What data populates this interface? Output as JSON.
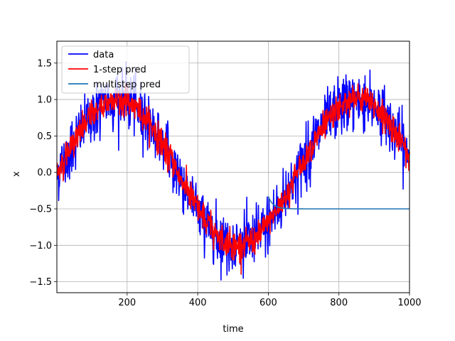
{
  "chart_data": {
    "type": "line",
    "title": "",
    "xlabel": "time",
    "ylabel": "x",
    "xlim": [
      1,
      1000
    ],
    "ylim": [
      -1.65,
      1.8
    ],
    "grid": true,
    "legend_position": "top-left",
    "x_ticks": [
      "200",
      "400",
      "600",
      "800",
      "1000"
    ],
    "y_ticks": [
      "−1.5",
      "−1.0",
      "−0.5",
      "0.0",
      "0.5",
      "1.0",
      "1.5"
    ],
    "x_tick_values": [
      200,
      400,
      600,
      800,
      1000
    ],
    "y_tick_values": [
      -1.5,
      -1.0,
      -0.5,
      0.0,
      0.5,
      1.0,
      1.5
    ],
    "noise": {
      "data_std": 0.2,
      "pred_std": 0.1,
      "data_max": 1.65,
      "data_min": -1.5
    },
    "series": [
      {
        "name": "data",
        "color": "#0000ff",
        "shape": "sine",
        "x_range": [
          1,
          1000
        ],
        "amplitude": 1.0,
        "period": 680,
        "note_peaks": [
          {
            "x": 150,
            "y": 1.0
          },
          {
            "x": 460,
            "y": -1.0
          },
          {
            "x": 800,
            "y": 1.0
          }
        ]
      },
      {
        "name": "1-step pred",
        "color": "#ff0000",
        "shape": "sine",
        "x_range": [
          1,
          1000
        ]
      },
      {
        "name": "multistep pred",
        "color": "#1f77b4",
        "shape": "decay",
        "x_range": [
          600,
          1000
        ],
        "start_value": -0.33,
        "asymptote": -0.5
      }
    ]
  }
}
